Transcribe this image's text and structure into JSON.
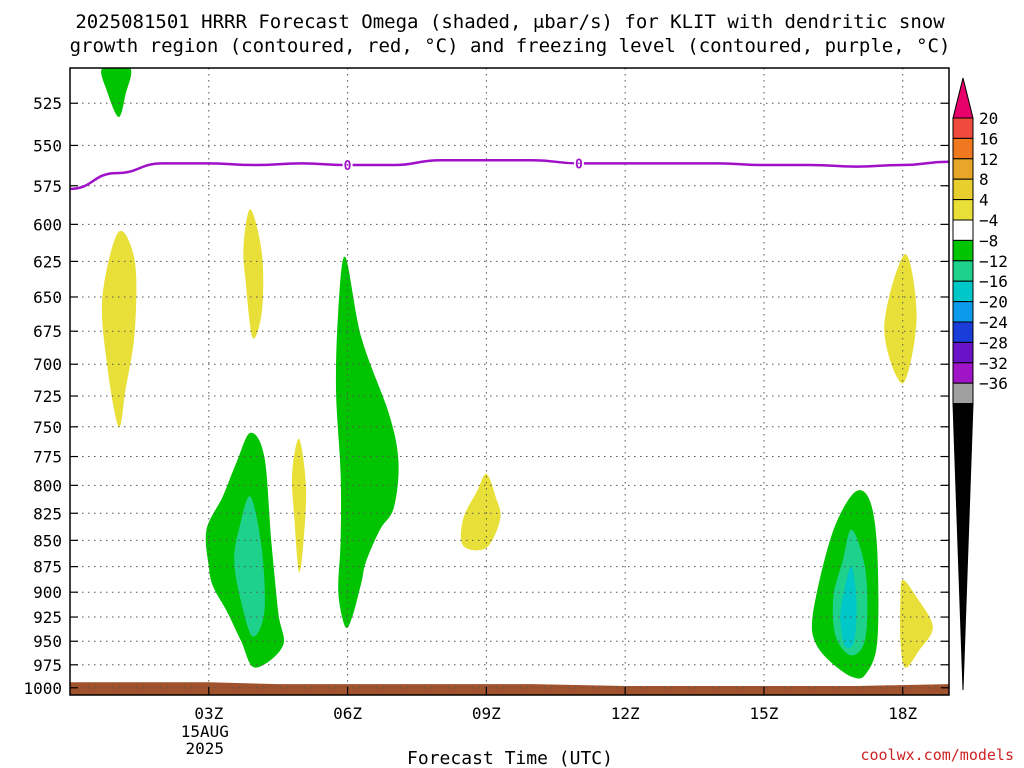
{
  "chart_data": {
    "type": "contour",
    "title_lines": [
      "2025081501 HRRR Forecast Omega (shaded, μbar/s) for KLIT with dendritic snow",
      "growth region (contoured, red, °C) and freezing level (contoured, purple, °C)"
    ],
    "xlabel": "Forecast Time (UTC)",
    "x_ticks": [
      {
        "hour": 3,
        "label": "03Z",
        "sub": [
          "15AUG",
          "2025"
        ]
      },
      {
        "hour": 6,
        "label": "06Z",
        "sub": []
      },
      {
        "hour": 9,
        "label": "09Z",
        "sub": []
      },
      {
        "hour": 12,
        "label": "12Z",
        "sub": []
      },
      {
        "hour": 15,
        "label": "15Z",
        "sub": []
      },
      {
        "hour": 18,
        "label": "18Z",
        "sub": []
      }
    ],
    "xlim": [
      0,
      19
    ],
    "y_ticks": [
      525,
      550,
      575,
      600,
      625,
      650,
      675,
      700,
      725,
      750,
      775,
      800,
      825,
      850,
      875,
      900,
      925,
      950,
      975,
      1000
    ],
    "ylim": [
      505,
      1008
    ],
    "y_scale": "log-pressure",
    "grid": true,
    "colorbar": {
      "levels": [
        "20",
        "16",
        "12",
        "8",
        "4",
        "−4",
        "−8",
        "−12",
        "−16",
        "−20",
        "−24",
        "−28",
        "−32",
        "−36"
      ],
      "colors": [
        "#e8006a",
        "#f04a3c",
        "#f0781e",
        "#e8a628",
        "#e8cf2e",
        "#e8e038",
        "#ffffff",
        "#00c400",
        "#1ed28c",
        "#00c8c8",
        "#0c9aec",
        "#1a3cd8",
        "#6a12c8",
        "#a014c8",
        "#a0a0a0",
        "#000000"
      ]
    },
    "freezing_level": {
      "color": "#a010c8",
      "label": "0",
      "label_hours": [
        6,
        11
      ],
      "points": [
        [
          0,
          577
        ],
        [
          1,
          567
        ],
        [
          2,
          561
        ],
        [
          3,
          561
        ],
        [
          4,
          562
        ],
        [
          5,
          561
        ],
        [
          6,
          562
        ],
        [
          7,
          562
        ],
        [
          8,
          559
        ],
        [
          9,
          559
        ],
        [
          10,
          559
        ],
        [
          11,
          561
        ],
        [
          12,
          561
        ],
        [
          13,
          561
        ],
        [
          14,
          561
        ],
        [
          15,
          562
        ],
        [
          16,
          562
        ],
        [
          17,
          563
        ],
        [
          18,
          562
        ],
        [
          19,
          560
        ]
      ]
    },
    "omega_areas": [
      {
        "value": "-4 to -8",
        "color": "#00c400",
        "points": [
          [
            0.7,
            505
          ],
          [
            1.3,
            505
          ],
          [
            1.2,
            520
          ],
          [
            1.05,
            533
          ],
          [
            0.8,
            518
          ]
        ]
      },
      {
        "value": "4 to 8",
        "color": "#e8e038",
        "points": [
          [
            1.05,
            605
          ],
          [
            1.4,
            625
          ],
          [
            1.4,
            675
          ],
          [
            1.2,
            720
          ],
          [
            1.05,
            750
          ],
          [
            0.8,
            700
          ],
          [
            0.7,
            650
          ]
        ]
      },
      {
        "value": "4 to 8",
        "color": "#e8e038",
        "points": [
          [
            3.9,
            590
          ],
          [
            4.15,
            620
          ],
          [
            4.15,
            660
          ],
          [
            3.95,
            680
          ],
          [
            3.8,
            640
          ],
          [
            3.75,
            615
          ]
        ]
      },
      {
        "value": "-4 to -8",
        "color": "#00c400",
        "points": [
          [
            3.9,
            755
          ],
          [
            4.2,
            775
          ],
          [
            4.35,
            850
          ],
          [
            4.5,
            920
          ],
          [
            4.6,
            955
          ],
          [
            4.0,
            978
          ],
          [
            3.7,
            950
          ],
          [
            3.4,
            920
          ],
          [
            3.1,
            895
          ],
          [
            3.0,
            875
          ],
          [
            2.95,
            840
          ],
          [
            3.3,
            810
          ],
          [
            3.6,
            780
          ]
        ]
      },
      {
        "value": "-8 to -12",
        "color": "#1ed28c",
        "points": [
          [
            3.9,
            810
          ],
          [
            4.15,
            860
          ],
          [
            4.2,
            920
          ],
          [
            3.95,
            945
          ],
          [
            3.7,
            910
          ],
          [
            3.55,
            870
          ],
          [
            3.65,
            840
          ]
        ]
      },
      {
        "value": "4 to 8",
        "color": "#e8e038",
        "points": [
          [
            4.95,
            760
          ],
          [
            5.1,
            800
          ],
          [
            5.05,
            850
          ],
          [
            4.95,
            880
          ],
          [
            4.85,
            830
          ],
          [
            4.8,
            790
          ]
        ]
      },
      {
        "value": "-4 to -8",
        "color": "#00c400",
        "points": [
          [
            5.95,
            622
          ],
          [
            6.3,
            680
          ],
          [
            6.9,
            740
          ],
          [
            7.1,
            780
          ],
          [
            7.0,
            820
          ],
          [
            6.7,
            840
          ],
          [
            6.4,
            870
          ],
          [
            6.3,
            890
          ],
          [
            6.1,
            925
          ],
          [
            5.95,
            935
          ],
          [
            5.8,
            900
          ],
          [
            5.85,
            850
          ],
          [
            5.85,
            790
          ],
          [
            5.75,
            720
          ],
          [
            5.8,
            660
          ]
        ]
      },
      {
        "value": "4 to 8",
        "color": "#e8e038",
        "points": [
          [
            9.0,
            790
          ],
          [
            9.2,
            810
          ],
          [
            9.3,
            830
          ],
          [
            9.0,
            857
          ],
          [
            8.5,
            855
          ],
          [
            8.5,
            830
          ],
          [
            8.8,
            805
          ]
        ]
      },
      {
        "value": "-4 to -8",
        "color": "#00c400",
        "points": [
          [
            17.0,
            805
          ],
          [
            17.3,
            815
          ],
          [
            17.45,
            860
          ],
          [
            17.45,
            950
          ],
          [
            17.2,
            985
          ],
          [
            16.9,
            988
          ],
          [
            16.4,
            970
          ],
          [
            16.1,
            950
          ],
          [
            16.05,
            925
          ],
          [
            16.3,
            870
          ],
          [
            16.6,
            830
          ]
        ]
      },
      {
        "value": "-8 to -12",
        "color": "#1ed28c",
        "points": [
          [
            16.9,
            840
          ],
          [
            17.2,
            880
          ],
          [
            17.2,
            945
          ],
          [
            16.9,
            965
          ],
          [
            16.55,
            945
          ],
          [
            16.5,
            905
          ],
          [
            16.7,
            870
          ]
        ]
      },
      {
        "value": "-12 to -16",
        "color": "#00c8c8",
        "points": [
          [
            16.9,
            875
          ],
          [
            17.0,
            910
          ],
          [
            16.95,
            950
          ],
          [
            16.75,
            955
          ],
          [
            16.65,
            925
          ],
          [
            16.75,
            895
          ]
        ]
      },
      {
        "value": "4 to 8",
        "color": "#e8e038",
        "points": [
          [
            18.05,
            620
          ],
          [
            18.3,
            665
          ],
          [
            18.0,
            715
          ],
          [
            17.6,
            672
          ]
        ]
      },
      {
        "value": "4 to 8",
        "color": "#e8e038",
        "points": [
          [
            18.0,
            888
          ],
          [
            18.3,
            905
          ],
          [
            18.65,
            935
          ],
          [
            18.35,
            960
          ],
          [
            18.05,
            978
          ],
          [
            17.95,
            950
          ],
          [
            17.95,
            910
          ]
        ]
      }
    ],
    "ground": {
      "color": "#a0522d",
      "points": [
        [
          0,
          994
        ],
        [
          3.0,
          994
        ],
        [
          4.5,
          996
        ],
        [
          10.0,
          996
        ],
        [
          12.0,
          998
        ],
        [
          17.0,
          998
        ],
        [
          19,
          996
        ]
      ]
    }
  },
  "credit": "coolwx.com/models",
  "credit_color": "#cc2222"
}
